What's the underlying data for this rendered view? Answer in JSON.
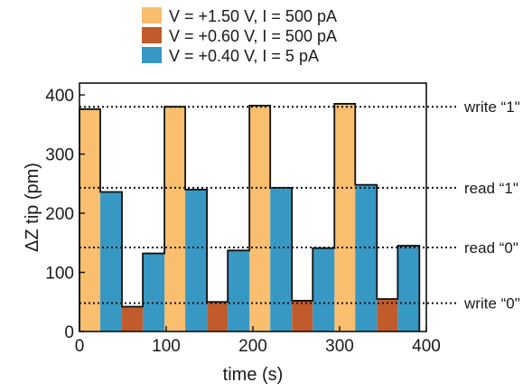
{
  "chart_data": {
    "type": "bar",
    "xlabel": "time (s)",
    "ylabel": "ΔZ tip (pm)",
    "xlim": [
      0,
      400
    ],
    "ylim": [
      0,
      420
    ],
    "x_ticks": [
      0,
      100,
      200,
      300,
      400
    ],
    "y_ticks": [
      0,
      100,
      200,
      300,
      400
    ],
    "grid": false,
    "legend_position": "top",
    "legend": [
      {
        "label": "V = +1.50 V, I = 500 pA",
        "color": "#F9BE6E"
      },
      {
        "label": "V = +0.60 V, I = 500 pA",
        "color": "#C25B2C"
      },
      {
        "label": "V = +0.40 V, I = 5 pA",
        "color": "#3798C4"
      }
    ],
    "series": [
      {
        "legend_index": 0,
        "segments": [
          {
            "start": 0,
            "end": 24,
            "value": 376
          },
          {
            "start": 98,
            "end": 122,
            "value": 380
          },
          {
            "start": 196,
            "end": 220,
            "value": 382
          },
          {
            "start": 294,
            "end": 318,
            "value": 385
          }
        ]
      },
      {
        "legend_index": 1,
        "segments": [
          {
            "start": 49,
            "end": 73,
            "value": 42
          },
          {
            "start": 147,
            "end": 171,
            "value": 50
          },
          {
            "start": 245,
            "end": 269,
            "value": 52
          },
          {
            "start": 343,
            "end": 367,
            "value": 55
          }
        ]
      },
      {
        "legend_index": 2,
        "segments": [
          {
            "start": 24,
            "end": 49,
            "value": 236
          },
          {
            "start": 73,
            "end": 98,
            "value": 132
          },
          {
            "start": 122,
            "end": 147,
            "value": 240
          },
          {
            "start": 171,
            "end": 196,
            "value": 137
          },
          {
            "start": 220,
            "end": 245,
            "value": 243
          },
          {
            "start": 269,
            "end": 294,
            "value": 141
          },
          {
            "start": 318,
            "end": 343,
            "value": 248
          },
          {
            "start": 367,
            "end": 392,
            "value": 145
          }
        ]
      }
    ],
    "reference_lines": [
      {
        "y": 380,
        "label": "write “1\""
      },
      {
        "y": 243,
        "label": "read “1\""
      },
      {
        "y": 142,
        "label": "read “0\""
      },
      {
        "y": 48,
        "label": "write “0\""
      }
    ]
  }
}
